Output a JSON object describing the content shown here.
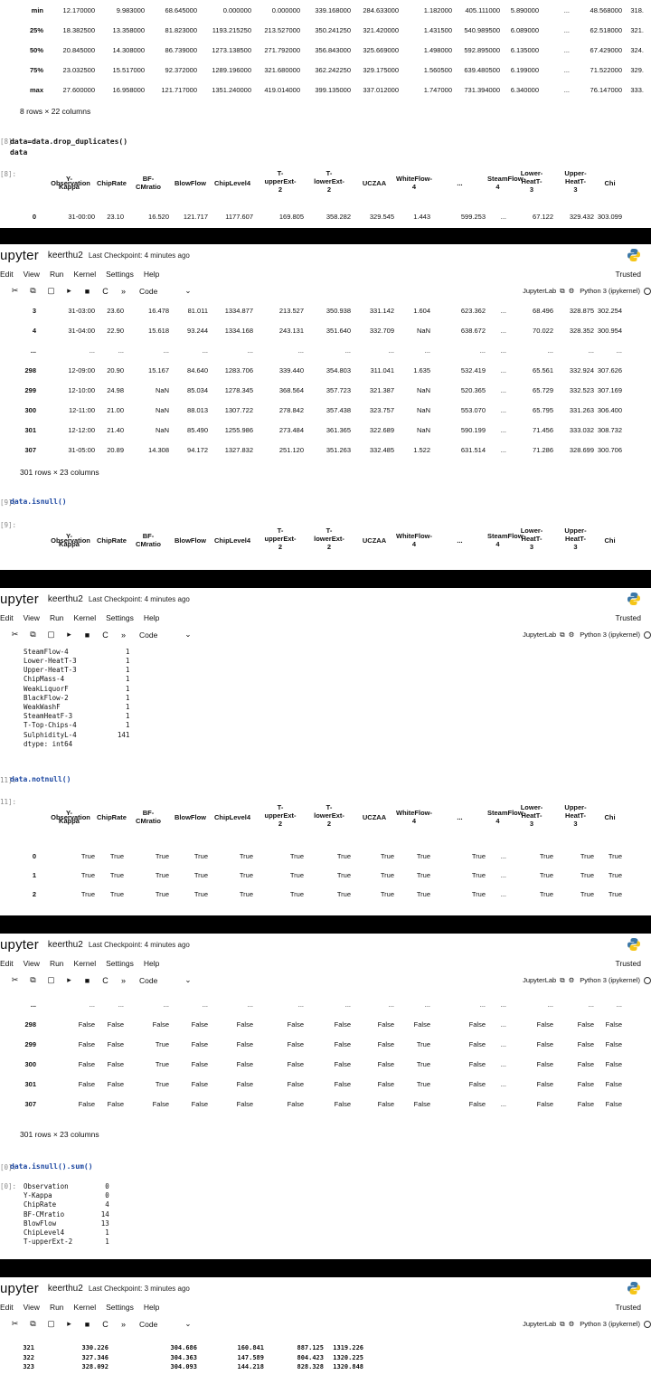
{
  "app": {
    "logo": "upyter",
    "notebook": "keerthu2",
    "checkpoint_4": "Last Checkpoint: 4 minutes ago",
    "checkpoint_3": "Last Checkpoint: 3 minutes ago",
    "trusted": "Trusted",
    "kernel": "Python 3 (ipykernel)",
    "jupyterlab": "JupyterLab",
    "cell_type": "Code"
  },
  "menu": [
    "Edit",
    "View",
    "Run",
    "Kernel",
    "Settings",
    "Help"
  ],
  "describe": {
    "rows": [
      {
        "label": "min",
        "values": [
          "12.170000",
          "9.983000",
          "68.645000",
          "0.000000",
          "0.000000",
          "339.168000",
          "284.633000",
          "1.182000",
          "405.111000",
          "5.890000",
          "...",
          "48.568000",
          "318."
        ]
      },
      {
        "label": "25%",
        "values": [
          "18.382500",
          "13.358000",
          "81.823000",
          "1193.215250",
          "213.527000",
          "350.241250",
          "321.420000",
          "1.431500",
          "540.989500",
          "6.089000",
          "...",
          "62.518000",
          "321."
        ]
      },
      {
        "label": "50%",
        "values": [
          "20.845000",
          "14.308000",
          "86.739000",
          "1273.138500",
          "271.792000",
          "356.843000",
          "325.669000",
          "1.498000",
          "592.895000",
          "6.135000",
          "...",
          "67.429000",
          "324."
        ]
      },
      {
        "label": "75%",
        "values": [
          "23.032500",
          "15.517000",
          "92.372000",
          "1289.196000",
          "321.680000",
          "362.242250",
          "329.175000",
          "1.560500",
          "639.480500",
          "6.199000",
          "...",
          "71.522000",
          "329."
        ]
      },
      {
        "label": "max",
        "values": [
          "27.600000",
          "16.958000",
          "121.717000",
          "1351.240000",
          "419.014000",
          "399.135000",
          "337.012000",
          "1.747000",
          "731.394000",
          "6.340000",
          "...",
          "76.147000",
          "333."
        ]
      }
    ],
    "shape": "8 rows × 22 columns"
  },
  "cells": {
    "c8_prompt": "[8]:",
    "c8_code_l1": "data=data.drop_duplicates()",
    "c8_code_l2": "data",
    "c8_out_prompt": "[8]:",
    "c9_prompt": "[9]:",
    "c9_code": "data.isnull()",
    "c9_out_prompt": "[9]:",
    "c11_prompt": "11]:",
    "c11_code": "data.notnull()",
    "c11_out_prompt": "11]:",
    "c10_prompt": "[0]:",
    "c10_code": "data.isnull().sum()",
    "c10_out_prompt": "[0]:"
  },
  "columns": [
    "Observation",
    "Y-\nKappa",
    "ChipRate",
    "BF-\nCMratio",
    "BlowFlow",
    "ChipLevel4",
    "T-\nupperExt-\n2",
    "T-\nlowerExt-\n2",
    "UCZAA",
    "WhiteFlow-\n4",
    "...",
    "SteamFlow-\n4",
    "Lower-\nHeatT-\n3",
    "Upper-\nHeatT-\n3",
    "Chi"
  ],
  "dedup_head": [
    {
      "idx": "0",
      "values": [
        "31-00:00",
        "23.10",
        "16.520",
        "121.717",
        "1177.607",
        "169.805",
        "358.282",
        "329.545",
        "1.443",
        "599.253",
        "...",
        "67.122",
        "329.432",
        "303.099"
      ]
    }
  ],
  "dedup_rows": [
    {
      "idx": "3",
      "values": [
        "31-03:00",
        "23.60",
        "16.478",
        "81.011",
        "1334.877",
        "213.527",
        "350.938",
        "331.142",
        "1.604",
        "623.362",
        "...",
        "68.496",
        "328.875",
        "302.254"
      ]
    },
    {
      "idx": "4",
      "values": [
        "31-04:00",
        "22.90",
        "15.618",
        "93.244",
        "1334.168",
        "243.131",
        "351.640",
        "332.709",
        "NaN",
        "638.672",
        "...",
        "70.022",
        "328.352",
        "300.954"
      ]
    },
    {
      "idx": "...",
      "values": [
        "...",
        "...",
        "...",
        "...",
        "...",
        "...",
        "...",
        "...",
        "...",
        "...",
        "...",
        "...",
        "...",
        "..."
      ]
    },
    {
      "idx": "298",
      "values": [
        "12-09:00",
        "20.90",
        "15.167",
        "84.640",
        "1283.706",
        "339.440",
        "354.803",
        "311.041",
        "1.635",
        "532.419",
        "...",
        "65.561",
        "332.924",
        "307.626"
      ]
    },
    {
      "idx": "299",
      "values": [
        "12-10:00",
        "24.98",
        "NaN",
        "85.034",
        "1278.345",
        "368.564",
        "357.723",
        "321.387",
        "NaN",
        "520.365",
        "...",
        "65.729",
        "332.523",
        "307.169"
      ]
    },
    {
      "idx": "300",
      "values": [
        "12-11:00",
        "21.00",
        "NaN",
        "88.013",
        "1307.722",
        "278.842",
        "357.438",
        "323.757",
        "NaN",
        "553.070",
        "...",
        "65.795",
        "331.263",
        "306.400"
      ]
    },
    {
      "idx": "301",
      "values": [
        "12-12:00",
        "21.40",
        "NaN",
        "85.490",
        "1255.986",
        "273.484",
        "361.365",
        "322.689",
        "NaN",
        "590.199",
        "...",
        "71.456",
        "333.032",
        "308.732"
      ]
    },
    {
      "idx": "307",
      "values": [
        "31-05:00",
        "20.89",
        "14.308",
        "94.172",
        "1327.832",
        "251.120",
        "351.263",
        "332.485",
        "1.522",
        "631.514",
        "...",
        "71.286",
        "328.699",
        "300.706"
      ]
    }
  ],
  "dedup_shape": "301 rows × 23 columns",
  "isnull_tail": "Lower-HeatT-3            1\nUpper-HeatT-3            1\nChipMass-4               1\nWeakLiquorF              1\nBlackFlow-2              1\nWeakWashF                1\nSteamHeatF-3             1\nT-Top-Chips-4            1\nSulphidityL-4          141\ndtype: int64",
  "isnull_tail_first": "SteamFlow-4              1",
  "notnull_rows": [
    {
      "idx": "0",
      "values": [
        "True",
        "True",
        "True",
        "True",
        "True",
        "True",
        "True",
        "True",
        "True",
        "True",
        "...",
        "True",
        "True",
        "True"
      ]
    },
    {
      "idx": "1",
      "values": [
        "True",
        "True",
        "True",
        "True",
        "True",
        "True",
        "True",
        "True",
        "True",
        "True",
        "...",
        "True",
        "True",
        "True"
      ]
    },
    {
      "idx": "2",
      "values": [
        "True",
        "True",
        "True",
        "True",
        "True",
        "True",
        "True",
        "True",
        "True",
        "True",
        "...",
        "True",
        "True",
        "True"
      ]
    }
  ],
  "isnull_rows": [
    {
      "idx": "...",
      "values": [
        "...",
        "...",
        "...",
        "...",
        "...",
        "...",
        "...",
        "...",
        "...",
        "...",
        "...",
        "...",
        "...",
        "..."
      ]
    },
    {
      "idx": "298",
      "values": [
        "False",
        "False",
        "False",
        "False",
        "False",
        "False",
        "False",
        "False",
        "False",
        "False",
        "...",
        "False",
        "False",
        "False"
      ]
    },
    {
      "idx": "299",
      "values": [
        "False",
        "False",
        "True",
        "False",
        "False",
        "False",
        "False",
        "False",
        "True",
        "False",
        "...",
        "False",
        "False",
        "False"
      ]
    },
    {
      "idx": "300",
      "values": [
        "False",
        "False",
        "True",
        "False",
        "False",
        "False",
        "False",
        "False",
        "True",
        "False",
        "...",
        "False",
        "False",
        "False"
      ]
    },
    {
      "idx": "301",
      "values": [
        "False",
        "False",
        "True",
        "False",
        "False",
        "False",
        "False",
        "False",
        "True",
        "False",
        "...",
        "False",
        "False",
        "False"
      ]
    },
    {
      "idx": "307",
      "values": [
        "False",
        "False",
        "False",
        "False",
        "False",
        "False",
        "False",
        "False",
        "False",
        "False",
        "...",
        "False",
        "False",
        "False"
      ]
    }
  ],
  "isnull_shape": "301 rows × 23 columns",
  "sum_output": "Observation         0\nY-Kappa             0\nChipRate            4\nBF-CMratio         14\nBlowFlow           13\nChipLevel4          1\nT-upperExt-2        1",
  "bottom_rows": [
    {
      "idx": "321",
      "values": [
        "330.226",
        "304.686",
        "160.841",
        "887.125",
        "1319.226"
      ]
    },
    {
      "idx": "322",
      "values": [
        "327.346",
        "304.363",
        "147.589",
        "804.423",
        "1320.225"
      ]
    },
    {
      "idx": "323",
      "values": [
        "328.092",
        "304.093",
        "144.218",
        "828.328",
        "1320.848"
      ]
    }
  ]
}
